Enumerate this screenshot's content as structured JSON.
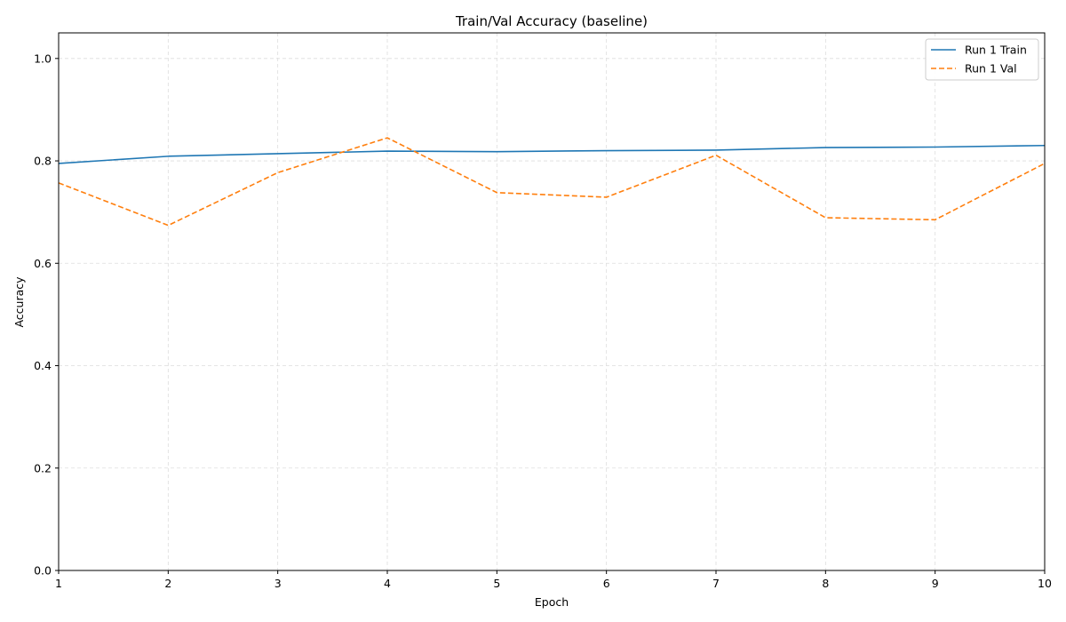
{
  "chart_data": {
    "type": "line",
    "title": "Train/Val Accuracy (baseline)",
    "xlabel": "Epoch",
    "ylabel": "Accuracy",
    "xlim": [
      1,
      10
    ],
    "ylim": [
      0.0,
      1.05
    ],
    "x_ticks": [
      "1",
      "2",
      "3",
      "4",
      "5",
      "6",
      "7",
      "8",
      "9",
      "10"
    ],
    "y_ticks": [
      "0.0",
      "0.2",
      "0.4",
      "0.6",
      "0.8",
      "1.0"
    ],
    "grid": true,
    "legend_position": "top-right",
    "x": [
      1,
      2,
      3,
      4,
      5,
      6,
      7,
      8,
      9,
      10
    ],
    "series": [
      {
        "name": "Run 1 Train",
        "color": "#1f77b4",
        "style": "solid",
        "values": [
          0.795,
          0.809,
          0.814,
          0.819,
          0.818,
          0.82,
          0.821,
          0.826,
          0.827,
          0.83
        ]
      },
      {
        "name": "Run 1 Val",
        "color": "#ff7f0e",
        "style": "dashed",
        "values": [
          0.757,
          0.674,
          0.777,
          0.845,
          0.738,
          0.729,
          0.811,
          0.689,
          0.685,
          0.795
        ]
      }
    ]
  }
}
